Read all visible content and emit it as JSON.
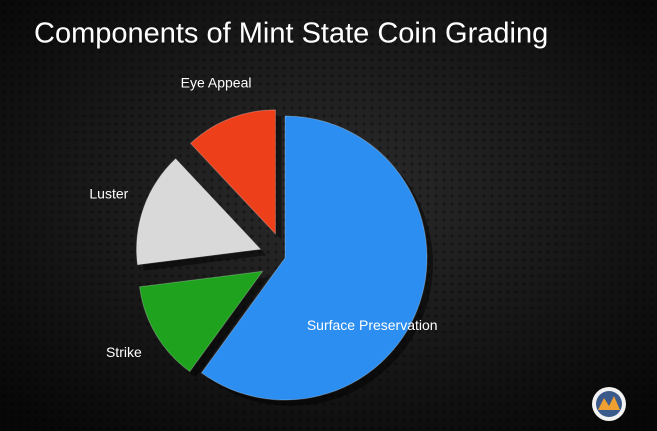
{
  "chart_data": {
    "type": "pie",
    "title": "Components of Mint State Coin Grading",
    "categories": [
      "Surface Preservation",
      "Strike",
      "Luster",
      "Eye Appeal"
    ],
    "values": [
      60,
      13,
      15,
      12
    ],
    "colors": [
      "#2b8ef0",
      "#1fa31f",
      "#d9d9d9",
      "#ee3f1b"
    ],
    "exploded": [
      false,
      true,
      true,
      true
    ]
  }
}
